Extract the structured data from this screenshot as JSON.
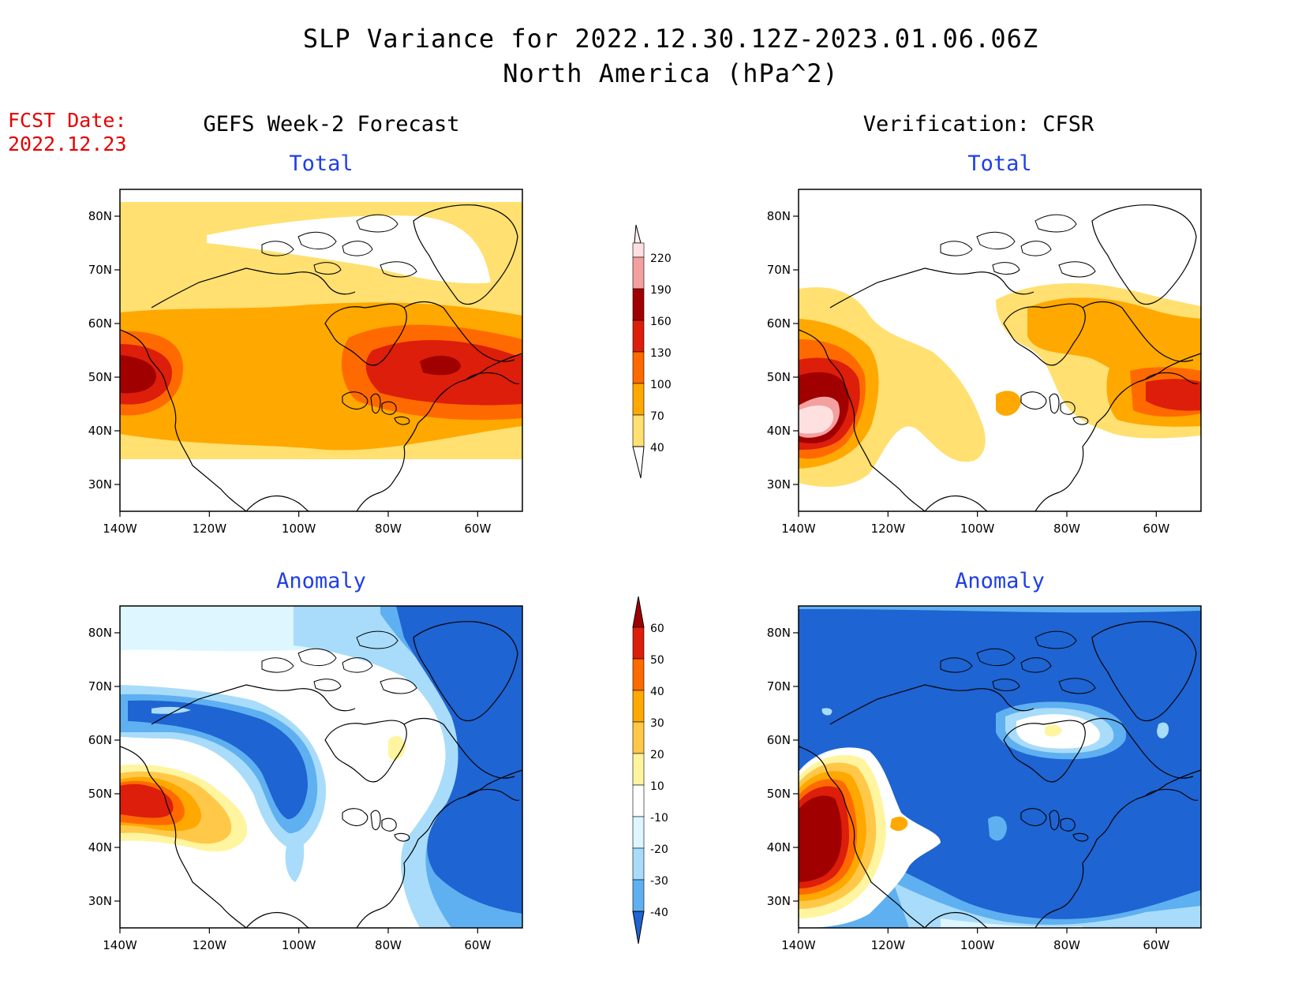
{
  "header": {
    "title_line1": "SLP Variance for 2022.12.30.12Z-2023.01.06.06Z",
    "title_line2": "North America (hPa^2)",
    "fcst_label": "FCST Date:",
    "fcst_date": "2022.12.23",
    "left_column": "GEFS Week-2 Forecast",
    "right_column": "Verification: CFSR"
  },
  "panels": [
    {
      "id": "fcst-total",
      "title": "Total",
      "field": "total",
      "source": "GEFS"
    },
    {
      "id": "verif-total",
      "title": "Total",
      "field": "total",
      "source": "CFSR"
    },
    {
      "id": "fcst-anomaly",
      "title": "Anomaly",
      "field": "anomaly",
      "source": "GEFS"
    },
    {
      "id": "verif-anomaly",
      "title": "Anomaly",
      "field": "anomaly",
      "source": "CFSR"
    }
  ],
  "axes": {
    "lon_ticks": [
      "140W",
      "120W",
      "100W",
      "80W",
      "60W"
    ],
    "lat_ticks": [
      "80N",
      "70N",
      "60N",
      "50N",
      "40N",
      "30N"
    ],
    "lon_range": [
      -140,
      -50
    ],
    "lat_range": [
      25,
      85
    ]
  },
  "colorbars": {
    "total": {
      "labels": [
        "220",
        "190",
        "160",
        "130",
        "100",
        "70",
        "40"
      ],
      "colors": [
        "#ffe0e0",
        "#f4a0a0",
        "#a00000",
        "#dc1e0a",
        "#ff6a00",
        "#ffa800",
        "#ffe070"
      ]
    },
    "anomaly": {
      "labels": [
        "60",
        "50",
        "40",
        "30",
        "20",
        "10",
        "-10",
        "-20",
        "-30",
        "-40"
      ],
      "colors": [
        "#a00000",
        "#dc1e0a",
        "#ff6a00",
        "#ffa800",
        "#ffc848",
        "#fff5a0",
        "#ffffff",
        "#ddf6ff",
        "#a8dcfa",
        "#5fb0f0",
        "#1e64d2"
      ]
    }
  }
}
